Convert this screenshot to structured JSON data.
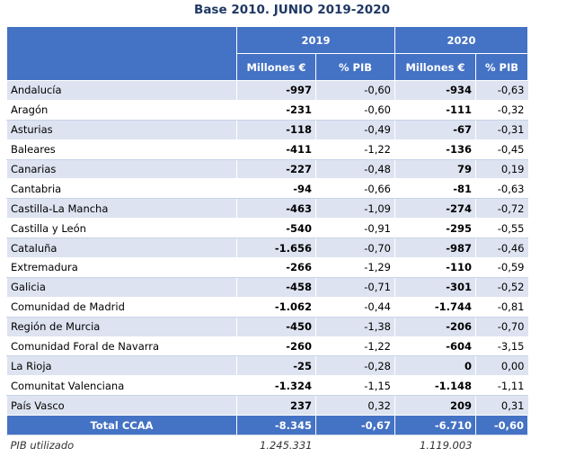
{
  "title": "Base 2010. JUNIO 2019-2020",
  "header": {
    "years": [
      "2019",
      "2020"
    ],
    "subheaders": [
      "Millones €",
      "% PIB",
      "Millones €",
      "% PIB"
    ]
  },
  "rows": [
    {
      "region": "Andalucía",
      "m2019": "-997",
      "p2019": "-0,60",
      "m2020": "-934",
      "p2020": "-0,63"
    },
    {
      "region": "Aragón",
      "m2019": "-231",
      "p2019": "-0,60",
      "m2020": "-111",
      "p2020": "-0,32"
    },
    {
      "region": "Asturias",
      "m2019": "-118",
      "p2019": "-0,49",
      "m2020": "-67",
      "p2020": "-0,31"
    },
    {
      "region": "Baleares",
      "m2019": "-411",
      "p2019": "-1,22",
      "m2020": "-136",
      "p2020": "-0,45"
    },
    {
      "region": "Canarias",
      "m2019": "-227",
      "p2019": "-0,48",
      "m2020": "79",
      "p2020": "0,19"
    },
    {
      "region": "Cantabria",
      "m2019": "-94",
      "p2019": "-0,66",
      "m2020": "-81",
      "p2020": "-0,63"
    },
    {
      "region": "Castilla-La Mancha",
      "m2019": "-463",
      "p2019": "-1,09",
      "m2020": "-274",
      "p2020": "-0,72"
    },
    {
      "region": "Castilla y León",
      "m2019": "-540",
      "p2019": "-0,91",
      "m2020": "-295",
      "p2020": "-0,55"
    },
    {
      "region": "Cataluña",
      "m2019": "-1.656",
      "p2019": "-0,70",
      "m2020": "-987",
      "p2020": "-0,46"
    },
    {
      "region": "Extremadura",
      "m2019": "-266",
      "p2019": "-1,29",
      "m2020": "-110",
      "p2020": "-0,59"
    },
    {
      "region": "Galicia",
      "m2019": "-458",
      "p2019": "-0,71",
      "m2020": "-301",
      "p2020": "-0,52"
    },
    {
      "region": "Comunidad de Madrid",
      "m2019": "-1.062",
      "p2019": "-0,44",
      "m2020": "-1.744",
      "p2020": "-0,81"
    },
    {
      "region": "Región de Murcia",
      "m2019": "-450",
      "p2019": "-1,38",
      "m2020": "-206",
      "p2020": "-0,70"
    },
    {
      "region": "Comunidad Foral de Navarra",
      "m2019": "-260",
      "p2019": "-1,22",
      "m2020": "-604",
      "p2020": "-3,15"
    },
    {
      "region": "La Rioja",
      "m2019": "-25",
      "p2019": "-0,28",
      "m2020": "0",
      "p2020": "0,00"
    },
    {
      "region": "Comunitat Valenciana",
      "m2019": "-1.324",
      "p2019": "-1,15",
      "m2020": "-1.148",
      "p2020": "-1,11"
    },
    {
      "region": "País Vasco",
      "m2019": "237",
      "p2019": "0,32",
      "m2020": "209",
      "p2020": "0,31"
    }
  ],
  "total": {
    "region": "Total CCAA",
    "m2019": "-8.345",
    "p2019": "-0,67",
    "m2020": "-6.710",
    "p2020": "-0,60"
  },
  "pib": {
    "label": "PIB utilizado",
    "v2019": "1.245.331",
    "v2020": "1.119.003"
  }
}
